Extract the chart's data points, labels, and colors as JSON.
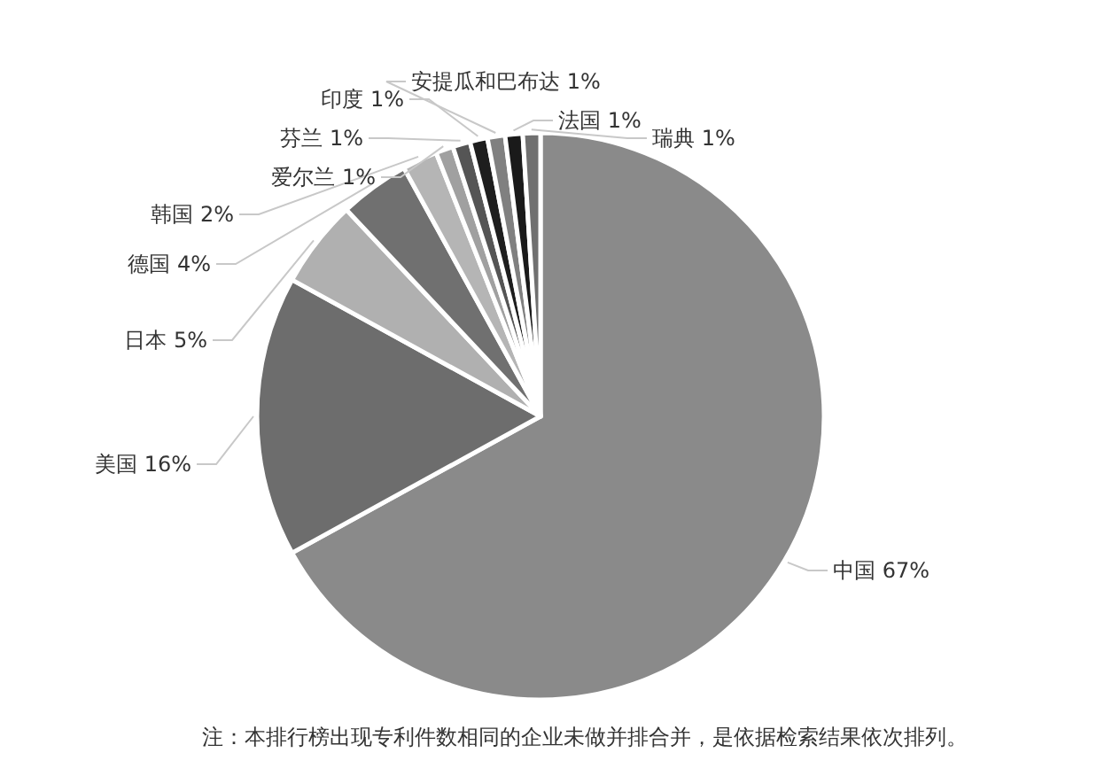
{
  "chart_data": {
    "type": "pie",
    "categories": [
      "中国",
      "美国",
      "日本",
      "德国",
      "韩国",
      "爱尔兰",
      "芬兰",
      "印度",
      "安提瓜和巴布达",
      "法国",
      "瑞典"
    ],
    "values": [
      67,
      16,
      5,
      4,
      2,
      1,
      1,
      1,
      1,
      1,
      1
    ],
    "colors": [
      "#8a8a8a",
      "#6d6d6d",
      "#b0b0b0",
      "#707070",
      "#b5b5b5",
      "#a0a0a0",
      "#555555",
      "#1e1e1e",
      "#808080",
      "#1a1a1a",
      "#707070"
    ],
    "value_labels": [
      "67%",
      "16%",
      "5%",
      "4%",
      "2%",
      "1%",
      "1%",
      "1%",
      "1%",
      "1%",
      "1%"
    ],
    "annotations": [
      "注：本排行榜出现专利件数相同的企业未做并排合并，是依据检索结果依次排列。"
    ]
  }
}
